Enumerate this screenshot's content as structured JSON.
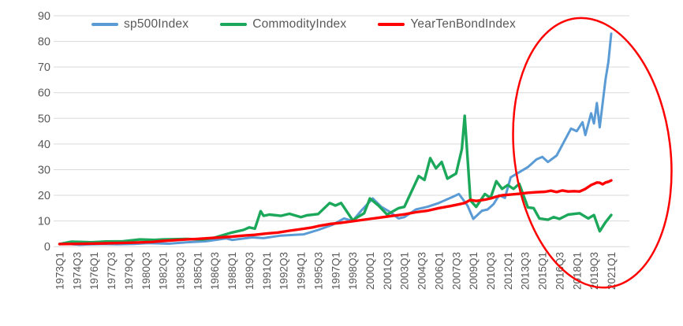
{
  "chart_data": {
    "type": "line",
    "title": "",
    "legend_position": "top-center",
    "grid": "horizontal",
    "ylim": [
      0,
      90
    ],
    "y_ticks": [
      0,
      10,
      20,
      30,
      40,
      50,
      60,
      70,
      80,
      90
    ],
    "x_unit": "quarter",
    "x_range_quarters": [
      "1973Q1",
      "2021Q1"
    ],
    "x_tick_step_quarters": 6,
    "x_tick_labels": [
      "1973Q1",
      "1974Q3",
      "1976Q1",
      "1977Q3",
      "1979Q1",
      "1980Q3",
      "1982Q1",
      "1983Q3",
      "1985Q1",
      "1986Q3",
      "1988Q1",
      "1989Q3",
      "1991Q1",
      "1992Q3",
      "1994Q1",
      "1995Q3",
      "1997Q1",
      "1998Q3",
      "2000Q1",
      "2001Q3",
      "2003Q1",
      "2004Q3",
      "2006Q1",
      "2007Q3",
      "2009Q1",
      "2010Q3",
      "2012Q1",
      "2013Q3",
      "2015Q1",
      "2016Q3",
      "2018Q1",
      "2019Q3",
      "2021Q1"
    ],
    "series": [
      {
        "name": "sp500Index",
        "color": "#5B9BD5",
        "points": [
          [
            0,
            1.0
          ],
          [
            3,
            1.05
          ],
          [
            7,
            0.7
          ],
          [
            10,
            0.85
          ],
          [
            15,
            1.0
          ],
          [
            20,
            0.9
          ],
          [
            26,
            1.05
          ],
          [
            31,
            1.35
          ],
          [
            38,
            1.15
          ],
          [
            44,
            1.7
          ],
          [
            51,
            2.1
          ],
          [
            58,
            3.2
          ],
          [
            60,
            2.6
          ],
          [
            67,
            3.6
          ],
          [
            71,
            3.3
          ],
          [
            77,
            4.3
          ],
          [
            85,
            4.8
          ],
          [
            90,
            6.5
          ],
          [
            95,
            8.5
          ],
          [
            99,
            11.0
          ],
          [
            102,
            10.0
          ],
          [
            105,
            14.0
          ],
          [
            109,
            18.8
          ],
          [
            112,
            15.5
          ],
          [
            115,
            13.5
          ],
          [
            118,
            11.0
          ],
          [
            120,
            11.5
          ],
          [
            124,
            14.5
          ],
          [
            128,
            15.5
          ],
          [
            132,
            17.0
          ],
          [
            137,
            19.5
          ],
          [
            139,
            20.5
          ],
          [
            142,
            16.0
          ],
          [
            144,
            10.8
          ],
          [
            147,
            14.0
          ],
          [
            149,
            14.5
          ],
          [
            151,
            16.5
          ],
          [
            153,
            20.0
          ],
          [
            155,
            19.0
          ],
          [
            157,
            27.0
          ],
          [
            160,
            29.0
          ],
          [
            163,
            31.0
          ],
          [
            166,
            34.0
          ],
          [
            168,
            35.0
          ],
          [
            170,
            33.0
          ],
          [
            173,
            35.5
          ],
          [
            178,
            46.0
          ],
          [
            180,
            45.0
          ],
          [
            182,
            48.5
          ],
          [
            183,
            43.5
          ],
          [
            185,
            52.0
          ],
          [
            186,
            48.0
          ],
          [
            187,
            56.0
          ],
          [
            188,
            46.5
          ],
          [
            190,
            65.0
          ],
          [
            191,
            72.0
          ],
          [
            192,
            83.0
          ]
        ]
      },
      {
        "name": "CommodityIndex",
        "color": "#1CA85B",
        "points": [
          [
            0,
            1.0
          ],
          [
            4,
            1.9
          ],
          [
            8,
            1.8
          ],
          [
            11,
            1.7
          ],
          [
            16,
            2.0
          ],
          [
            22,
            2.1
          ],
          [
            28,
            2.8
          ],
          [
            33,
            2.6
          ],
          [
            36,
            2.8
          ],
          [
            44,
            3.0
          ],
          [
            50,
            2.8
          ],
          [
            54,
            3.5
          ],
          [
            60,
            5.5
          ],
          [
            64,
            6.5
          ],
          [
            66,
            7.5
          ],
          [
            68,
            7.0
          ],
          [
            70,
            13.8
          ],
          [
            71,
            12.0
          ],
          [
            73,
            12.5
          ],
          [
            77,
            12.0
          ],
          [
            80,
            12.8
          ],
          [
            84,
            11.5
          ],
          [
            86,
            12.2
          ],
          [
            90,
            12.7
          ],
          [
            94,
            17.0
          ],
          [
            96,
            16.0
          ],
          [
            98,
            17.0
          ],
          [
            102,
            10.3
          ],
          [
            106,
            13.0
          ],
          [
            108,
            18.8
          ],
          [
            111,
            16.0
          ],
          [
            114,
            12.5
          ],
          [
            118,
            15.0
          ],
          [
            120,
            15.5
          ],
          [
            125,
            27.5
          ],
          [
            127,
            26.0
          ],
          [
            129,
            34.5
          ],
          [
            131,
            30.5
          ],
          [
            133,
            33.0
          ],
          [
            135,
            26.5
          ],
          [
            138,
            28.5
          ],
          [
            140,
            38.0
          ],
          [
            141,
            51.0
          ],
          [
            143,
            18.0
          ],
          [
            145,
            15.5
          ],
          [
            148,
            20.5
          ],
          [
            150,
            19.0
          ],
          [
            152,
            25.5
          ],
          [
            154,
            22.5
          ],
          [
            156,
            24.0
          ],
          [
            158,
            22.5
          ],
          [
            160,
            24.5
          ],
          [
            163,
            15.3
          ],
          [
            165,
            15.0
          ],
          [
            167,
            11.0
          ],
          [
            170,
            10.5
          ],
          [
            172,
            11.5
          ],
          [
            174,
            10.8
          ],
          [
            177,
            12.5
          ],
          [
            181,
            13.0
          ],
          [
            184,
            11.0
          ],
          [
            186,
            12.3
          ],
          [
            188,
            6.0
          ],
          [
            190,
            9.5
          ],
          [
            192,
            12.3
          ]
        ]
      },
      {
        "name": "YearTenBondIndex",
        "color": "#FF0000",
        "points": [
          [
            0,
            1.0
          ],
          [
            8,
            1.1
          ],
          [
            16,
            1.3
          ],
          [
            24,
            1.5
          ],
          [
            32,
            1.8
          ],
          [
            36,
            2.2
          ],
          [
            40,
            2.5
          ],
          [
            44,
            2.8
          ],
          [
            48,
            3.0
          ],
          [
            52,
            3.3
          ],
          [
            56,
            3.6
          ],
          [
            60,
            3.9
          ],
          [
            64,
            4.3
          ],
          [
            68,
            4.6
          ],
          [
            72,
            5.1
          ],
          [
            76,
            5.5
          ],
          [
            80,
            6.2
          ],
          [
            84,
            6.8
          ],
          [
            88,
            7.5
          ],
          [
            90,
            8.0
          ],
          [
            94,
            8.8
          ],
          [
            98,
            9.3
          ],
          [
            100,
            9.6
          ],
          [
            104,
            10.2
          ],
          [
            108,
            10.8
          ],
          [
            112,
            11.4
          ],
          [
            116,
            12.0
          ],
          [
            120,
            12.6
          ],
          [
            124,
            13.4
          ],
          [
            128,
            14.0
          ],
          [
            132,
            15.0
          ],
          [
            136,
            15.8
          ],
          [
            139,
            16.5
          ],
          [
            141,
            17.0
          ],
          [
            143,
            18.2
          ],
          [
            145,
            17.8
          ],
          [
            148,
            18.3
          ],
          [
            150,
            18.8
          ],
          [
            152,
            19.5
          ],
          [
            154,
            20.0
          ],
          [
            157,
            20.3
          ],
          [
            160,
            20.6
          ],
          [
            163,
            21.0
          ],
          [
            166,
            21.2
          ],
          [
            169,
            21.4
          ],
          [
            171,
            21.8
          ],
          [
            173,
            21.3
          ],
          [
            175,
            21.9
          ],
          [
            177,
            21.5
          ],
          [
            179,
            21.6
          ],
          [
            181,
            21.5
          ],
          [
            183,
            22.5
          ],
          [
            185,
            24.0
          ],
          [
            187,
            25.0
          ],
          [
            188,
            24.9
          ],
          [
            189,
            24.3
          ],
          [
            190,
            25.0
          ],
          [
            191,
            25.3
          ],
          [
            192,
            25.8
          ]
        ]
      }
    ],
    "annotation": {
      "shape": "ellipse",
      "color": "#FF0000",
      "highlights_region": "approx 2014Q1-2021Q1, full value range"
    },
    "style": {
      "gridline_color": "#D9D9D9",
      "tick_label_color": "#595959"
    }
  }
}
